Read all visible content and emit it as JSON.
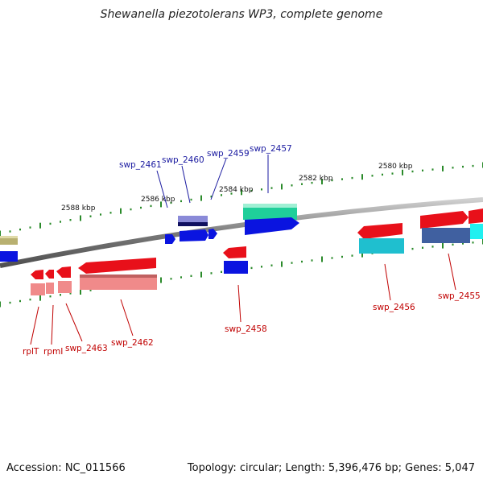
{
  "title": "Shewanella piezotolerans WP3, complete genome",
  "footer": {
    "accession": "Accession: NC_011566",
    "summary": "Topology: circular; Length: 5,396,476 bp; Genes: 5,047"
  },
  "kbp_labels": [
    "2588 kbp",
    "2586 kbp",
    "2584 kbp",
    "2582 kbp",
    "2580 kbp"
  ],
  "upper_labels": [
    "swp_2461",
    "swp_2460",
    "swp_2459",
    "swp_2457"
  ],
  "lower_labels": [
    "rplT",
    "rpmI",
    "swp_2463",
    "swp_2462",
    "swp_2458",
    "swp_2456",
    "swp_2455"
  ],
  "colors": {
    "backbone": "#8a8a8a",
    "tick": "#2a8a2a",
    "upper_label": "#1a1aa0",
    "lower_label": "#c00000",
    "gene_red": "#e8101a",
    "gene_blue": "#0a14e0",
    "gene_teal": "#1fcf9a",
    "gene_cyan": "#1fbfcf",
    "gene_pink": "#f08a8a",
    "gene_olive": "#b8b070",
    "gene_slate": "#4060a0",
    "gene_lavender": "#8a8ad8"
  }
}
